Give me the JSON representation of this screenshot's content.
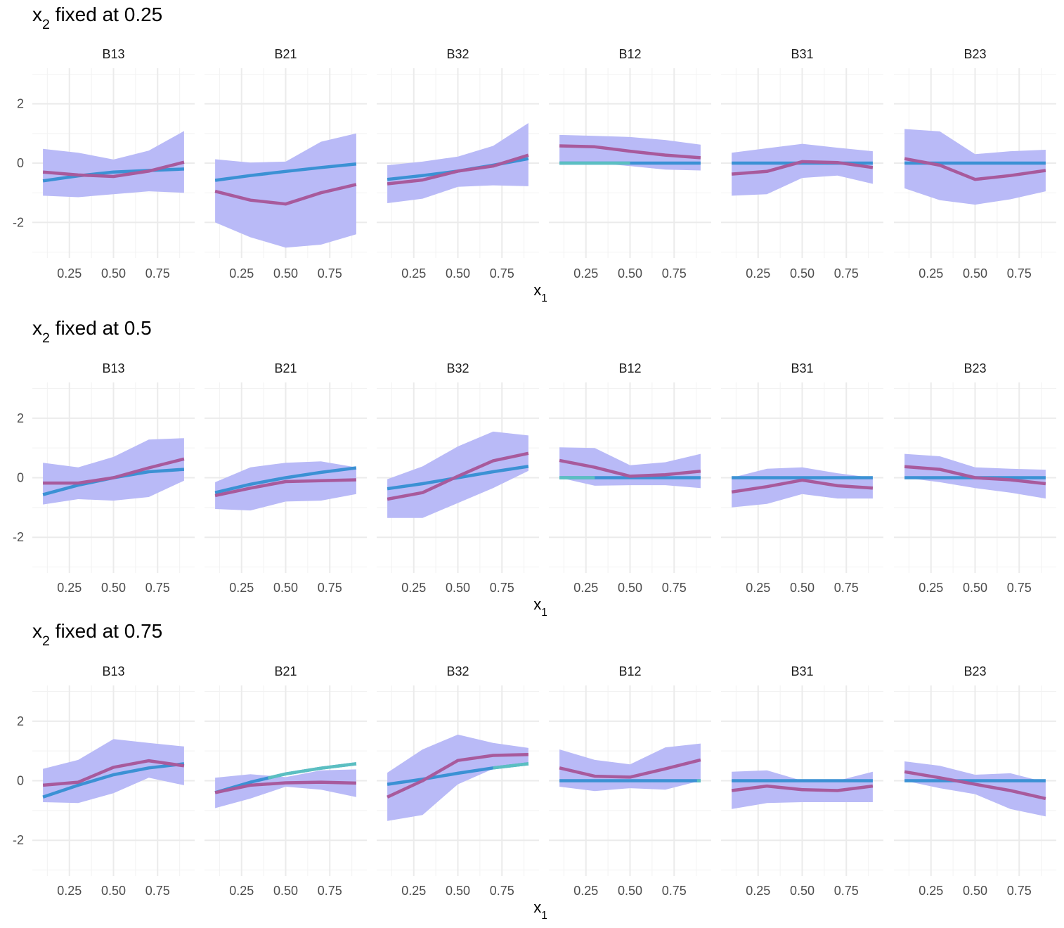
{
  "chart_data": {
    "type": "line",
    "x_label_base": "x",
    "x_label_sub": "1",
    "title_base": "x",
    "title_sub": "2",
    "x_ticks": [
      0.25,
      0.5,
      0.75
    ],
    "x_tick_labels": [
      "0.25",
      "0.50",
      "0.75"
    ],
    "y_ticks": [
      -2,
      0,
      2
    ],
    "y_tick_labels": [
      "-2",
      "0",
      "2"
    ],
    "xlim": [
      0.04,
      0.96
    ],
    "ylim": [
      -3.2,
      3.2
    ],
    "x": [
      0.1,
      0.3,
      0.5,
      0.7,
      0.9
    ],
    "colors": {
      "band": "#b9baf7",
      "estimate": "#a85a9c",
      "truth": "#3b91d4",
      "truth_alt": "#5bbfc1"
    },
    "rows": [
      {
        "title": " fixed at 0.25",
        "panels": [
          {
            "name": "B13",
            "estimate": [
              -0.3,
              -0.4,
              -0.45,
              -0.27,
              0.03
            ],
            "lower": [
              -1.1,
              -1.15,
              -1.05,
              -0.95,
              -1.0
            ],
            "upper": [
              0.48,
              0.35,
              0.12,
              0.42,
              1.08
            ],
            "truth": [
              -0.6,
              -0.43,
              -0.3,
              -0.25,
              -0.2
            ]
          },
          {
            "name": "B21",
            "estimate": [
              -0.95,
              -1.25,
              -1.38,
              -1.0,
              -0.72
            ],
            "lower": [
              -2.0,
              -2.5,
              -2.85,
              -2.75,
              -2.4
            ],
            "upper": [
              0.13,
              0.02,
              0.05,
              0.72,
              1.0
            ],
            "truth": [
              -0.58,
              -0.42,
              -0.28,
              -0.15,
              -0.03
            ]
          },
          {
            "name": "B32",
            "estimate": [
              -0.7,
              -0.57,
              -0.27,
              -0.1,
              0.27
            ],
            "lower": [
              -1.35,
              -1.2,
              -0.8,
              -0.75,
              -0.78
            ],
            "upper": [
              -0.07,
              0.05,
              0.22,
              0.58,
              1.35
            ],
            "truth": [
              -0.55,
              -0.42,
              -0.27,
              -0.07,
              0.15
            ]
          },
          {
            "name": "B12",
            "estimate": [
              0.58,
              0.55,
              0.4,
              0.27,
              0.18
            ],
            "lower": [
              0.0,
              0.0,
              -0.1,
              -0.22,
              -0.25
            ],
            "upper": [
              0.95,
              0.92,
              0.88,
              0.78,
              0.62
            ],
            "truth": [
              0.0,
              0.0,
              0.0,
              0.0,
              0.0
            ],
            "truth_alt": [
              0.0,
              0.0,
              0.0,
              0.0,
              0.0
            ],
            "alt_until": 0.5
          },
          {
            "name": "B31",
            "estimate": [
              -0.37,
              -0.28,
              0.05,
              0.02,
              -0.15
            ],
            "lower": [
              -1.1,
              -1.05,
              -0.5,
              -0.42,
              -0.7
            ],
            "upper": [
              0.35,
              0.5,
              0.65,
              0.52,
              0.4
            ],
            "truth": [
              0.0,
              0.0,
              0.0,
              0.0,
              0.0
            ]
          },
          {
            "name": "B23",
            "estimate": [
              0.15,
              -0.07,
              -0.55,
              -0.42,
              -0.25
            ],
            "lower": [
              -0.85,
              -1.25,
              -1.4,
              -1.22,
              -0.95
            ],
            "upper": [
              1.15,
              1.07,
              0.3,
              0.4,
              0.45
            ],
            "truth": [
              0.0,
              0.0,
              0.0,
              0.0,
              0.0
            ]
          }
        ]
      },
      {
        "title": " fixed at 0.5",
        "panels": [
          {
            "name": "B13",
            "estimate": [
              -0.18,
              -0.18,
              0.0,
              0.33,
              0.63
            ],
            "lower": [
              -0.9,
              -0.72,
              -0.77,
              -0.65,
              -0.1
            ],
            "upper": [
              0.5,
              0.35,
              0.7,
              1.28,
              1.33
            ],
            "truth": [
              -0.57,
              -0.25,
              0.0,
              0.2,
              0.28
            ]
          },
          {
            "name": "B21",
            "estimate": [
              -0.6,
              -0.35,
              -0.13,
              -0.1,
              -0.07
            ],
            "lower": [
              -1.05,
              -1.1,
              -0.8,
              -0.77,
              -0.55
            ],
            "upper": [
              -0.15,
              0.35,
              0.5,
              0.55,
              0.35
            ],
            "truth": [
              -0.5,
              -0.22,
              0.0,
              0.18,
              0.33
            ]
          },
          {
            "name": "B32",
            "estimate": [
              -0.72,
              -0.5,
              0.05,
              0.57,
              0.82
            ],
            "lower": [
              -1.35,
              -1.35,
              -0.85,
              -0.35,
              0.23
            ],
            "upper": [
              -0.05,
              0.38,
              1.05,
              1.55,
              1.42
            ],
            "truth": [
              -0.37,
              -0.2,
              0.0,
              0.2,
              0.38
            ]
          },
          {
            "name": "B12",
            "estimate": [
              0.58,
              0.35,
              0.05,
              0.1,
              0.22
            ],
            "lower": [
              0.0,
              -0.27,
              -0.25,
              -0.25,
              -0.35
            ],
            "upper": [
              1.02,
              1.0,
              0.42,
              0.52,
              0.8
            ],
            "truth": [
              0.0,
              0.0,
              0.0,
              0.0,
              0.0
            ],
            "truth_alt": [
              0.0,
              0.0,
              0.0,
              0.0,
              0.0
            ],
            "alt_until": 0.3
          },
          {
            "name": "B31",
            "estimate": [
              -0.48,
              -0.3,
              -0.08,
              -0.27,
              -0.35
            ],
            "lower": [
              -1.0,
              -0.88,
              -0.55,
              -0.7,
              -0.7
            ],
            "upper": [
              0.0,
              0.3,
              0.35,
              0.15,
              0.0
            ],
            "truth": [
              0.0,
              0.0,
              0.0,
              0.0,
              0.0
            ]
          },
          {
            "name": "B23",
            "estimate": [
              0.37,
              0.28,
              0.0,
              -0.07,
              -0.2
            ],
            "lower": [
              0.0,
              -0.15,
              -0.35,
              -0.5,
              -0.7
            ],
            "upper": [
              0.8,
              0.72,
              0.35,
              0.3,
              0.27
            ],
            "truth": [
              0.0,
              0.0,
              0.0,
              0.0,
              0.0
            ]
          }
        ]
      },
      {
        "title": " fixed at 0.75",
        "panels": [
          {
            "name": "B13",
            "estimate": [
              -0.15,
              -0.05,
              0.45,
              0.67,
              0.5
            ],
            "lower": [
              -0.72,
              -0.75,
              -0.42,
              0.1,
              -0.15
            ],
            "upper": [
              0.4,
              0.7,
              1.4,
              1.27,
              1.15
            ],
            "truth": [
              -0.55,
              -0.15,
              0.2,
              0.43,
              0.57
            ]
          },
          {
            "name": "B21",
            "estimate": [
              -0.4,
              -0.15,
              -0.07,
              -0.05,
              -0.08
            ],
            "lower": [
              -0.92,
              -0.6,
              -0.2,
              -0.3,
              -0.55
            ],
            "upper": [
              0.1,
              0.22,
              0.12,
              0.35,
              0.38
            ],
            "truth": [
              -0.4,
              -0.05,
              0.23,
              0.42,
              0.57
            ],
            "truth_alt": [
              -0.4,
              -0.05,
              0.23,
              0.42,
              0.57
            ],
            "alt_until": 0.96,
            "alt_from": 0.4
          },
          {
            "name": "B32",
            "estimate": [
              -0.55,
              0.0,
              0.68,
              0.85,
              0.88
            ],
            "lower": [
              -1.35,
              -1.15,
              -0.12,
              0.4,
              0.55
            ],
            "upper": [
              0.27,
              1.05,
              1.55,
              1.27,
              1.1
            ],
            "truth": [
              -0.12,
              0.05,
              0.25,
              0.43,
              0.57
            ],
            "truth_alt": [
              -0.12,
              0.05,
              0.25,
              0.43,
              0.57
            ],
            "alt_until": 0.96,
            "alt_from": 0.7
          },
          {
            "name": "B12",
            "estimate": [
              0.43,
              0.15,
              0.12,
              0.4,
              0.7
            ],
            "lower": [
              -0.2,
              -0.35,
              -0.25,
              -0.3,
              0.0
            ],
            "upper": [
              1.05,
              0.7,
              0.55,
              1.12,
              1.25
            ],
            "truth": [
              0.0,
              0.0,
              0.0,
              0.0,
              0.0
            ],
            "truth_alt": [
              0.0,
              0.0,
              0.0,
              0.0,
              0.0
            ],
            "alt_until": 0.96,
            "alt_from": 0.88
          },
          {
            "name": "B31",
            "estimate": [
              -0.33,
              -0.18,
              -0.3,
              -0.33,
              -0.18
            ],
            "lower": [
              -0.95,
              -0.75,
              -0.72,
              -0.72,
              -0.72
            ],
            "upper": [
              0.3,
              0.35,
              0.0,
              0.0,
              0.3
            ],
            "truth": [
              0.0,
              0.0,
              0.0,
              0.0,
              0.0
            ]
          },
          {
            "name": "B23",
            "estimate": [
              0.3,
              0.1,
              -0.12,
              -0.33,
              -0.6
            ],
            "lower": [
              0.0,
              -0.25,
              -0.45,
              -0.95,
              -1.2
            ],
            "upper": [
              0.65,
              0.5,
              0.2,
              0.25,
              -0.05
            ],
            "truth": [
              0.0,
              0.0,
              0.0,
              0.0,
              0.0
            ]
          }
        ]
      }
    ]
  }
}
